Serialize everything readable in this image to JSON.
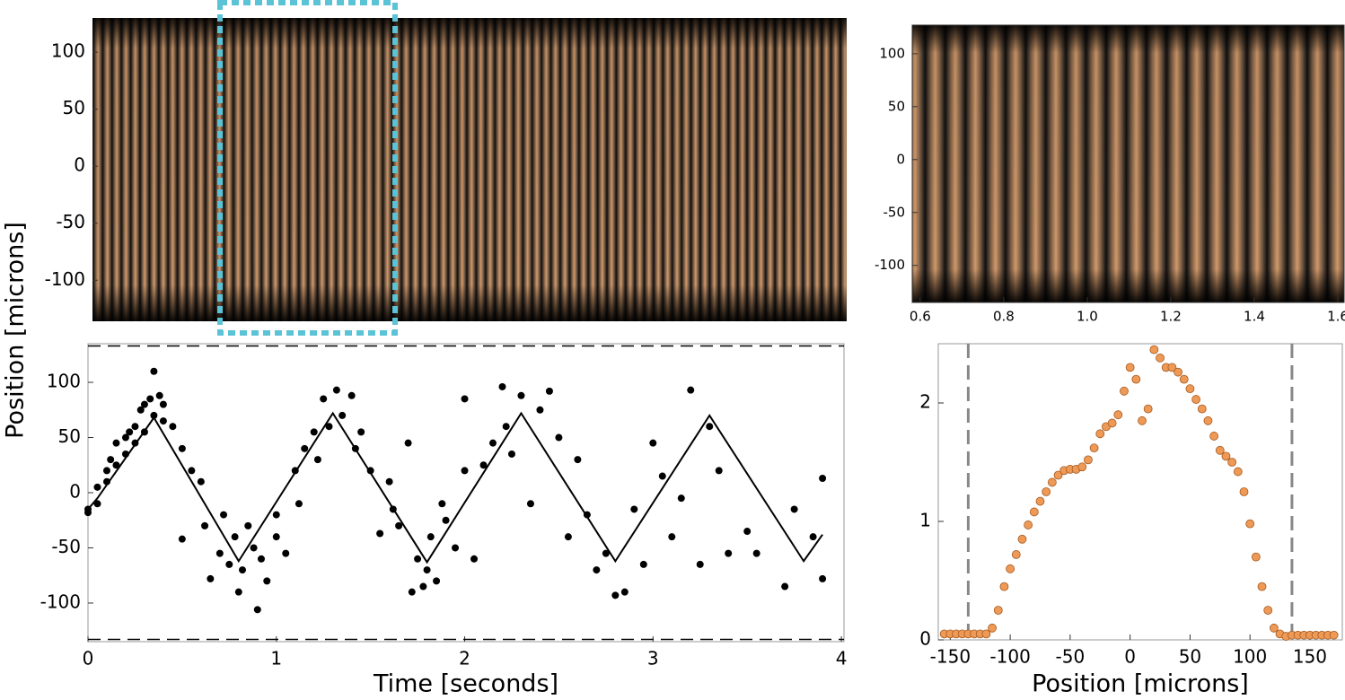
{
  "chart_data": [
    {
      "type": "image",
      "ylim": [
        -136,
        130
      ],
      "yticks": [
        -100,
        -50,
        0,
        50,
        100
      ]
    },
    {
      "type": "image",
      "xlim": [
        0.581,
        1.615
      ],
      "ylim": [
        -135,
        127
      ],
      "xticks": [
        0.6,
        0.8,
        {
          "value": 1,
          "label": "1.0"
        },
        1.2,
        1.4,
        1.6
      ],
      "yticks": [
        -100,
        -50,
        0,
        50,
        100
      ]
    },
    {
      "type": "scatter",
      "xlabel": "Time [seconds]",
      "ylabel": "Position [microns]",
      "xlim": [
        0,
        4.014
      ],
      "ylim": [
        -135,
        135
      ],
      "xticks": [
        0,
        1,
        2,
        3,
        4
      ],
      "yticks": [
        -100,
        -50,
        0,
        50,
        100
      ],
      "hlines": [
        133,
        -133
      ],
      "color": "#000000",
      "x": [
        0,
        0,
        0.05,
        0.05,
        0.1,
        0.1,
        0.12,
        0.15,
        0.15,
        0.2,
        0.2,
        0.22,
        0.25,
        0.25,
        0.28,
        0.3,
        0.3,
        0.33,
        0.35,
        0.35,
        0.38,
        0.4,
        0.4,
        0.45,
        0.5,
        0.5,
        0.55,
        0.6,
        0.62,
        0.65,
        0.7,
        0.72,
        0.75,
        0.78,
        0.8,
        0.82,
        0.85,
        0.88,
        0.9,
        0.92,
        0.95,
        1.0,
        1.0,
        1.05,
        1.1,
        1.12,
        1.15,
        1.2,
        1.22,
        1.25,
        1.28,
        1.32,
        1.35,
        1.4,
        1.42,
        1.45,
        1.5,
        1.55,
        1.6,
        1.62,
        1.65,
        1.7,
        1.72,
        1.75,
        1.78,
        1.8,
        1.82,
        1.85,
        1.88,
        1.9,
        1.95,
        2.0,
        2.0,
        2.05,
        2.1,
        2.15,
        2.2,
        2.22,
        2.25,
        2.3,
        2.35,
        2.4,
        2.45,
        2.5,
        2.55,
        2.6,
        2.65,
        2.7,
        2.75,
        2.8,
        2.85,
        2.9,
        2.95,
        3.0,
        3.05,
        3.1,
        3.15,
        3.2,
        3.25,
        3.3,
        3.35,
        3.4,
        3.5,
        3.55,
        3.7,
        3.75,
        3.85,
        3.9,
        3.9
      ],
      "values": [
        -15,
        -18,
        5,
        -10,
        10,
        20,
        30,
        45,
        25,
        50,
        35,
        55,
        60,
        45,
        75,
        80,
        55,
        85,
        110,
        70,
        88,
        65,
        80,
        60,
        40,
        -42,
        20,
        10,
        -30,
        -78,
        -55,
        -20,
        -65,
        -40,
        -90,
        -70,
        -30,
        -50,
        -106,
        -60,
        -80,
        -40,
        -20,
        -55,
        20,
        -10,
        40,
        55,
        30,
        85,
        60,
        93,
        70,
        88,
        40,
        55,
        20,
        -37,
        10,
        -15,
        -30,
        45,
        -90,
        -60,
        -85,
        -70,
        -40,
        -80,
        -10,
        -25,
        -50,
        85,
        20,
        -60,
        25,
        45,
        96,
        60,
        35,
        88,
        -10,
        75,
        92,
        50,
        -40,
        30,
        -20,
        -70,
        -55,
        -93,
        -90,
        -15,
        -65,
        45,
        15,
        -40,
        -5,
        93,
        -65,
        60,
        20,
        -55,
        -35,
        -55,
        -85,
        -15,
        -40,
        -78,
        13
      ],
      "fit_x": [
        0,
        0.05,
        0.35,
        0.8,
        1.3,
        1.8,
        2.3,
        2.8,
        3.3,
        3.8,
        3.9
      ],
      "fit_values": [
        -15,
        -5,
        68,
        -62,
        72,
        -63,
        72,
        -62,
        70,
        -62,
        -38
      ]
    },
    {
      "type": "scatter",
      "xlabel": "Position [microns]",
      "xlim": [
        -160,
        177
      ],
      "ylim": [
        0,
        2.5
      ],
      "xticks": [
        -150,
        -100,
        -50,
        0,
        50,
        100,
        150
      ],
      "yticks": [
        0,
        1,
        2
      ],
      "vlines": [
        -135,
        135
      ],
      "color": "#ee9955",
      "x": [
        -155,
        -150,
        -145,
        -140,
        -135,
        -130,
        -125,
        -120,
        -115,
        -110,
        -105,
        -100,
        -95,
        -90,
        -85,
        -80,
        -75,
        -70,
        -65,
        -60,
        -55,
        -50,
        -45,
        -40,
        -35,
        -30,
        -25,
        -20,
        -15,
        -10,
        -5,
        0,
        5,
        10,
        15,
        20,
        25,
        30,
        35,
        40,
        45,
        50,
        55,
        60,
        65,
        70,
        75,
        80,
        85,
        90,
        95,
        100,
        105,
        110,
        115,
        120,
        125,
        130,
        135,
        140,
        145,
        150,
        155,
        160,
        165,
        170
      ],
      "values": [
        0.05,
        0.05,
        0.05,
        0.05,
        0.05,
        0.05,
        0.05,
        0.05,
        0.1,
        0.25,
        0.45,
        0.6,
        0.72,
        0.85,
        0.97,
        1.08,
        1.17,
        1.25,
        1.33,
        1.39,
        1.43,
        1.44,
        1.44,
        1.46,
        1.52,
        1.62,
        1.74,
        1.8,
        1.83,
        1.9,
        2.1,
        2.3,
        2.2,
        1.85,
        1.95,
        2.45,
        2.38,
        2.3,
        2.3,
        2.26,
        2.2,
        2.12,
        2.03,
        1.95,
        1.85,
        1.72,
        1.6,
        1.55,
        1.5,
        1.42,
        1.25,
        0.98,
        0.7,
        0.45,
        0.25,
        0.1,
        0.05,
        0.03,
        0.04,
        0.04,
        0.04,
        0.04,
        0.04,
        0.04,
        0.04,
        0.04
      ]
    }
  ]
}
